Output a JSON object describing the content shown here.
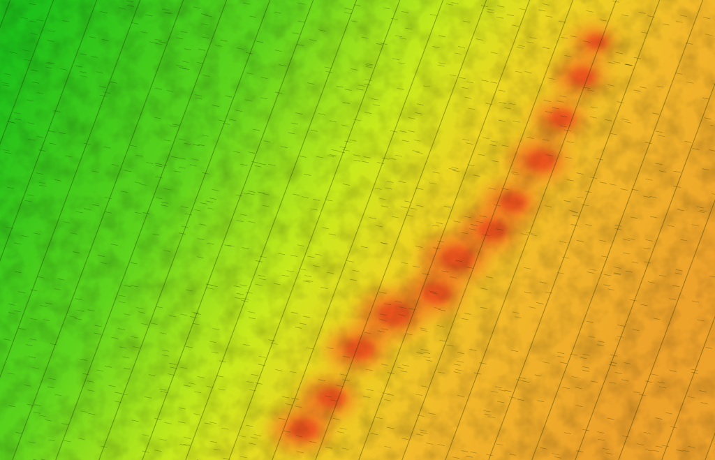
{
  "image": {
    "kind": "shaded-relief-elevation-map",
    "colormap": {
      "low": "#1fc61a",
      "mid_low": "#8fdc1e",
      "mid": "#e6ee1a",
      "mid_high": "#f2b326",
      "high": "#ef5a1c"
    },
    "features": [
      "survey-track-lines",
      "ridge"
    ]
  }
}
